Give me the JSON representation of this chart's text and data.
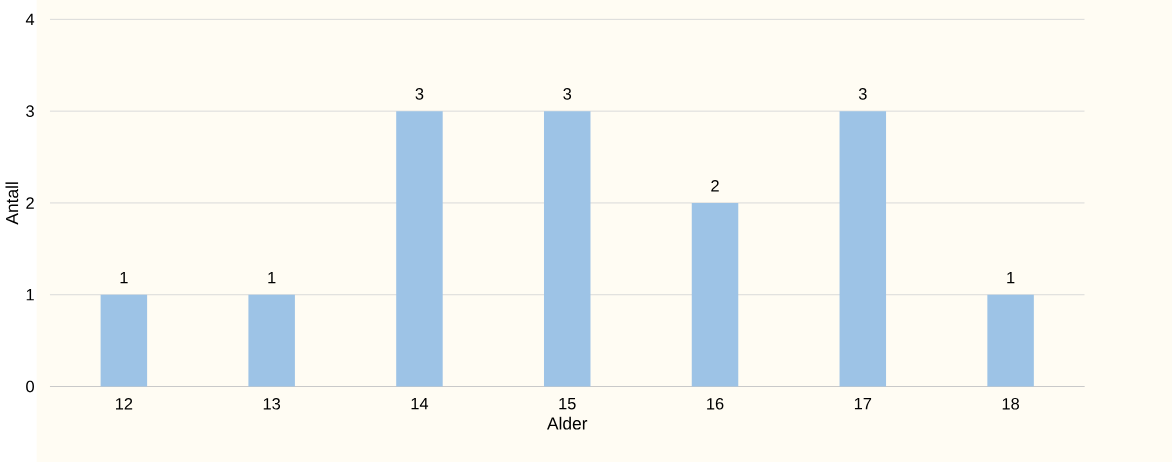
{
  "chart_data": {
    "type": "bar",
    "xlabel": "Alder",
    "ylabel": "Antall",
    "categories": [
      "12",
      "13",
      "14",
      "15",
      "16",
      "17",
      "18"
    ],
    "values": [
      1,
      1,
      3,
      3,
      2,
      3,
      1
    ],
    "color": "#9dc3e6",
    "ylim": [
      0,
      4
    ],
    "yticks": [
      0,
      1,
      2,
      3,
      4
    ],
    "grid": "y",
    "data_labels": true
  }
}
